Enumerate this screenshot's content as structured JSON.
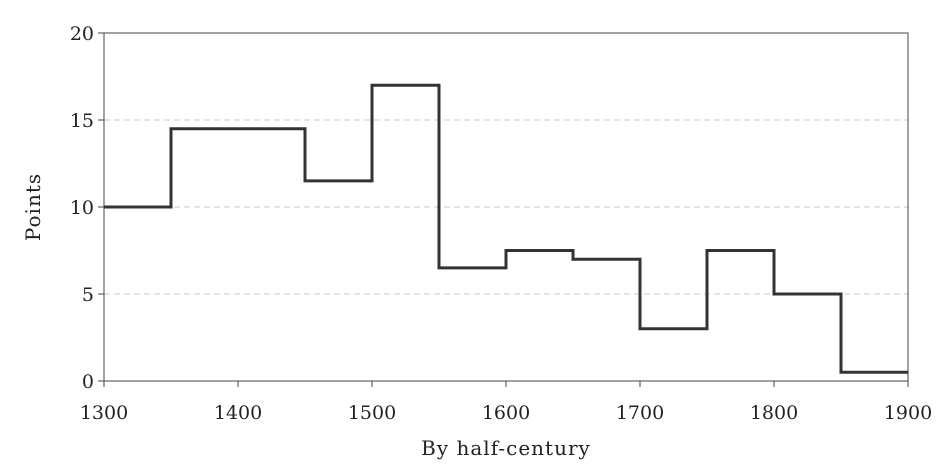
{
  "chart_data": {
    "type": "line",
    "subtype": "step",
    "title": "",
    "xlabel": "By half-century",
    "ylabel": "Points",
    "xlim": [
      1300,
      1900
    ],
    "ylim": [
      0,
      20
    ],
    "x_ticks": [
      1300,
      1400,
      1500,
      1600,
      1700,
      1800,
      1900
    ],
    "y_ticks": [
      0,
      5,
      10,
      15,
      20
    ],
    "grid": "horizontal-dashed",
    "legend": "none",
    "line_color": "#333333",
    "series": [
      {
        "x": [
          1300,
          1350,
          1400,
          1450,
          1500,
          1550,
          1600,
          1650,
          1700,
          1750,
          1800,
          1850
        ],
        "values": [
          10,
          14.5,
          14.5,
          11.5,
          17,
          6.5,
          7.5,
          7,
          3,
          7.5,
          5,
          0.5
        ]
      }
    ]
  }
}
